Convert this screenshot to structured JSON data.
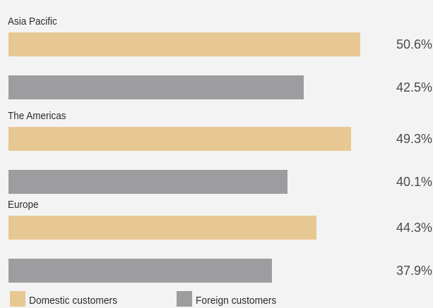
{
  "chart_data": {
    "type": "bar",
    "orientation": "horizontal",
    "categories": [
      "Asia Pacific",
      "The Americas",
      "Europe"
    ],
    "series": [
      {
        "name": "Domestic customers",
        "values": [
          50.6,
          49.3,
          44.3
        ],
        "color": "#e8c892"
      },
      {
        "name": "Foreign customers",
        "values": [
          42.5,
          40.1,
          37.9
        ],
        "color": "#9d9d9f"
      }
    ],
    "value_suffix": "%",
    "xlim": [
      0,
      51
    ],
    "grid": false,
    "legend_position": "bottom-left"
  }
}
